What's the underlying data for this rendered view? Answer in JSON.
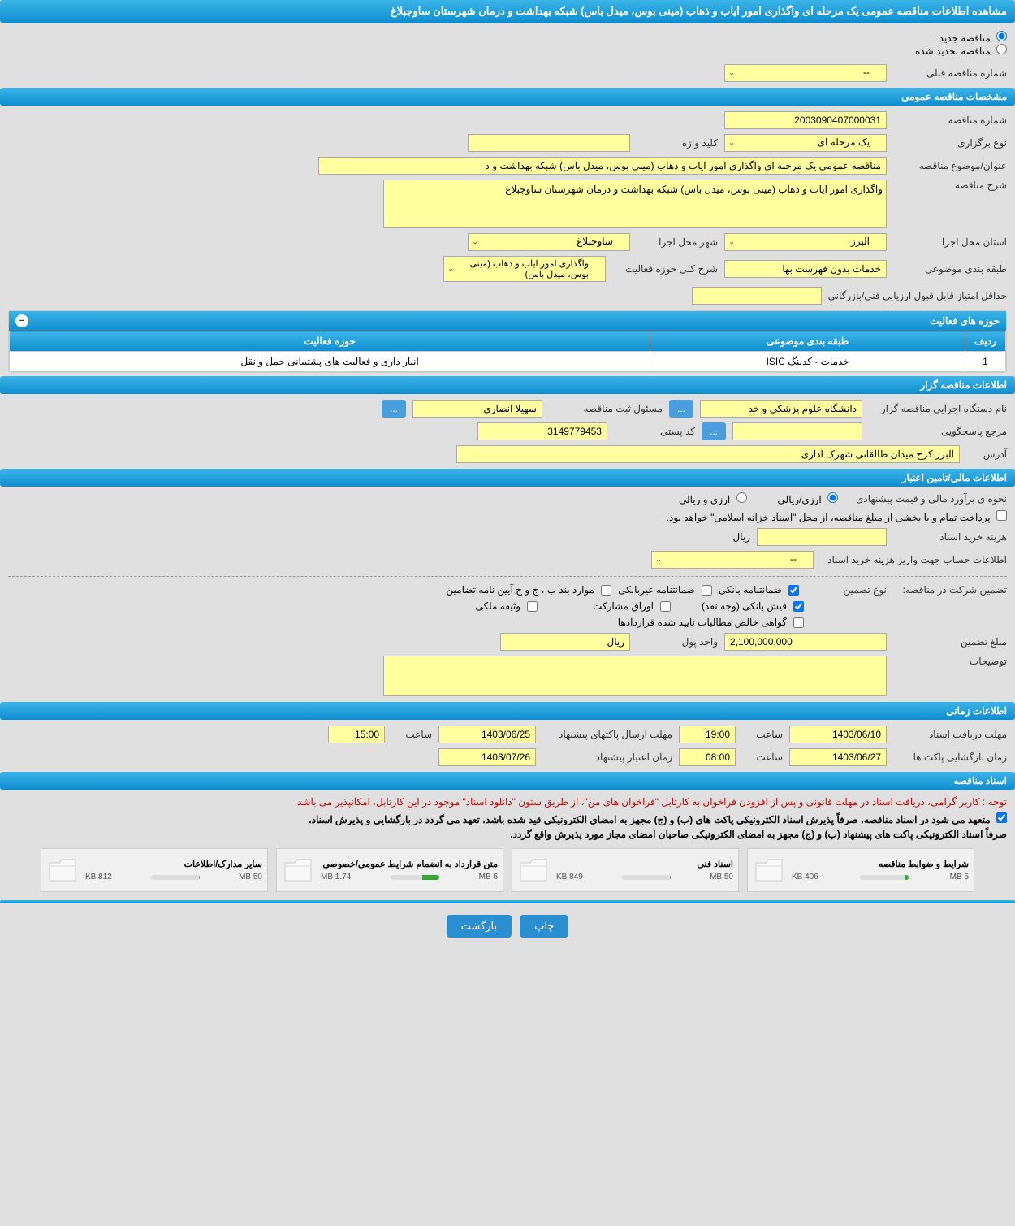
{
  "header_title": "مشاهده اطلاعات مناقصه عمومی یک مرحله ای واگذاری امور ایاب و ذهاب (مینی بوس، میدل باس) شبکه بهداشت و درمان شهرستان ساوجبلاغ",
  "radio_new": "مناقصه جدید",
  "radio_renewed": "مناقصه تجدید شده",
  "prev_number_label": "شماره مناقصه قبلی",
  "prev_number_value": "--",
  "sections": {
    "general": "مشخصات مناقصه عمومی",
    "organizer": "اطلاعات مناقصه گزار",
    "financial": "اطلاعات مالی/تامین اعتبار",
    "timing": "اطلاعات زمانی",
    "documents": "اسناد مناقصه"
  },
  "general": {
    "tender_number_label": "شماره مناقصه",
    "tender_number": "2003090407000031",
    "holding_type_label": "نوع برگزاری",
    "holding_type": "یک مرحله ای",
    "keyword_label": "کلید واژه",
    "keyword": "",
    "subject_label": "عنوان/موضوع مناقصه",
    "subject": "مناقصه عمومی یک مرحله ای واگذاری امور ایاب و ذهاب (مینی بوس، میدل باس) شبکه بهداشت و د",
    "description_label": "شرح مناقصه",
    "description": "واگذاری امور ایاب و ذهاب (مینی بوس، میدل باس) شبکه بهداشت و درمان شهرستان ساوجبلاغ",
    "province_label": "استان محل اجرا",
    "province": "البرز",
    "city_label": "شهر محل اجرا",
    "city": "ساوجبلاغ",
    "category_label": "طبقه بندی موضوعی",
    "category": "خدمات بدون فهرست بها",
    "activity_desc_label": "شرح کلی حوزه فعالیت",
    "activity_desc": "واگذاری امور ایاب و ذهاب (مینی بوس، میدل باس)",
    "min_score_label": "حداقل امتیاز قابل قبول ارزیابی فنی/بازرگانی",
    "min_score": ""
  },
  "activity_panel": {
    "title": "حوزه های فعالیت",
    "col_row": "ردیف",
    "col_category": "طبقه بندی موضوعی",
    "col_activity": "حوزه فعالیت",
    "row_num": "1",
    "row_category": "خدمات - کدینگ ISIC",
    "row_activity": "انبار داری و فعالیت های پشتیبانی حمل و نقل"
  },
  "organizer": {
    "exec_name_label": "نام دستگاه اجرایی مناقصه گزار",
    "exec_name": "دانشگاه علوم پزشکی و خد",
    "registrar_label": "مسئول ثبت مناقصه",
    "registrar": "سهیلا انصاری",
    "responder_label": "مرجع پاسخگویی",
    "responder": "",
    "postal_label": "کد پستی",
    "postal": "3149779453",
    "address_label": "آدرس",
    "address": "البرز کرج میدان طالقانی شهرک اداری"
  },
  "financial": {
    "estimate_label": "نحوه ی برآورد مالی و قیمت پیشنهادی",
    "radio_rial": "ارزی/ریالی",
    "radio_currency": "ارزی و ریالی",
    "treasury_note": "پرداخت تمام و یا بخشی از مبلغ مناقصه، از محل \"اسناد خزانه اسلامی\" خواهد بود.",
    "purchase_cost_label": "هزینه خرید اسناد",
    "purchase_cost": "",
    "rial_unit": "ریال",
    "deposit_account_label": "اطلاعات حساب جهت واریز هزینه خرید اسناد",
    "deposit_account": "--",
    "guarantee_label": "تضمین شرکت در مناقصه:",
    "guarantee_type_label": "نوع تضمین",
    "cb_bank_guarantee": "ضمانتنامه بانکی",
    "cb_nonbank_guarantee": "ضمانتنامه غیربانکی",
    "cb_regulation_items": "موارد بند ب ، ج و ح آیین نامه تضامین",
    "cb_bank_receipt": "فیش بانکی (وجه نقد)",
    "cb_partnership": "اوراق مشارکت",
    "cb_property": "وثیقه ملکی",
    "cb_receivables": "گواهی خالص مطالبات تایید شده قراردادها",
    "guarantee_amount_label": "مبلغ تضمین",
    "guarantee_amount": "2,100,000,000",
    "currency_unit_label": "واحد پول",
    "currency_unit": "ریال",
    "notes_label": "توضیحات",
    "notes": ""
  },
  "timing": {
    "doc_deadline_label": "مهلت دریافت اسناد",
    "doc_deadline_date": "1403/06/10",
    "doc_deadline_time": "19:00",
    "packet_deadline_label": "مهلت ارسال پاکتهای پیشنهاد",
    "packet_deadline_date": "1403/06/25",
    "packet_deadline_time": "15:00",
    "opening_label": "زمان بازگشایی پاکت ها",
    "opening_date": "1403/06/27",
    "opening_time": "08:00",
    "validity_label": "زمان اعتبار پیشنهاد",
    "validity_date": "1403/07/26",
    "time_label": "ساعت"
  },
  "documents": {
    "notice_red": "توجه : کاربر گرامی، دریافت اسناد در مهلت قانونی و پس از افزودن فراخوان به کارتابل \"فراخوان های من\"، از طریق ستون \"دانلود اسناد\" موجود در این کارتابل، امکانپذیر می باشد.",
    "notice_line1": "متعهد می شود در اسناد مناقصه، صرفاً پذیرش اسناد الکترونیکی پاکت های (ب) و (ج) مجهز به امضای الکترونیکی قید شده باشد، تعهد می گردد در بارگشایی و پذیرش اسناد،",
    "notice_line2": "صرفاً اسناد الکترونیکی پاکت های پیشنهاد (ب) و (ج) مجهز به امضای الکترونیکی صاحبان امضای مجاز مورد پذیرش واقع گردد.",
    "files": [
      {
        "title": "شرایط و ضوابط مناقصه",
        "size": "406 KB",
        "max": "5 MB",
        "fill": 8
      },
      {
        "title": "اسناد فنی",
        "size": "849 KB",
        "max": "50 MB",
        "fill": 2
      },
      {
        "title": "متن قرارداد به انضمام شرایط عمومی/خصوصی",
        "size": "1.74 MB",
        "max": "5 MB",
        "fill": 35
      },
      {
        "title": "سایر مدارک/اطلاعات",
        "size": "812 KB",
        "max": "50 MB",
        "fill": 2
      }
    ]
  },
  "footer": {
    "print": "چاپ",
    "back": "بازگشت"
  },
  "dots": "..."
}
